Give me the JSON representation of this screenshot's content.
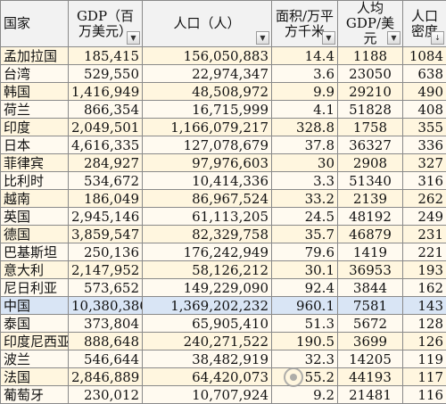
{
  "headers": {
    "country": "国家",
    "gdp": "GDP（百万美元）",
    "population": "人口（人）",
    "area": "面积/万平方千米",
    "gdp_per_capita": "人均GDP/美元",
    "density": "人口密度"
  },
  "filter_icons": {
    "gdp": "▼",
    "population": "▼",
    "area": "▼",
    "gdp_per_capita": "▼",
    "density": "↓"
  },
  "rows": [
    {
      "country": "孟加拉国",
      "gdp": "185,415",
      "population": "156,050,883",
      "area": "14.4",
      "gdp_per_capita": "1188",
      "density": "1084"
    },
    {
      "country": "台湾",
      "gdp": "529,550",
      "population": "22,974,347",
      "area": "3.6",
      "gdp_per_capita": "23050",
      "density": "638"
    },
    {
      "country": "韩国",
      "gdp": "1,416,949",
      "population": "48,508,972",
      "area": "9.9",
      "gdp_per_capita": "29210",
      "density": "490"
    },
    {
      "country": "荷兰",
      "gdp": "866,354",
      "population": "16,715,999",
      "area": "4.1",
      "gdp_per_capita": "51828",
      "density": "408"
    },
    {
      "country": "印度",
      "gdp": "2,049,501",
      "population": "1,166,079,217",
      "area": "328.8",
      "gdp_per_capita": "1758",
      "density": "355"
    },
    {
      "country": "日本",
      "gdp": "4,616,335",
      "population": "127,078,679",
      "area": "37.8",
      "gdp_per_capita": "36327",
      "density": "336"
    },
    {
      "country": "菲律宾",
      "gdp": "284,927",
      "population": "97,976,603",
      "area": "30",
      "gdp_per_capita": "2908",
      "density": "327"
    },
    {
      "country": "比利时",
      "gdp": "534,672",
      "population": "10,414,336",
      "area": "3.3",
      "gdp_per_capita": "51340",
      "density": "316"
    },
    {
      "country": "越南",
      "gdp": "186,049",
      "population": "86,967,524",
      "area": "33.2",
      "gdp_per_capita": "2139",
      "density": "262"
    },
    {
      "country": "英国",
      "gdp": "2,945,146",
      "population": "61,113,205",
      "area": "24.5",
      "gdp_per_capita": "48192",
      "density": "249"
    },
    {
      "country": "德国",
      "gdp": "3,859,547",
      "population": "82,329,758",
      "area": "35.7",
      "gdp_per_capita": "46879",
      "density": "231"
    },
    {
      "country": "巴基斯坦",
      "gdp": "250,136",
      "population": "176,242,949",
      "area": "79.6",
      "gdp_per_capita": "1419",
      "density": "221"
    },
    {
      "country": "意大利",
      "gdp": "2,147,952",
      "population": "58,126,212",
      "area": "30.1",
      "gdp_per_capita": "36953",
      "density": "193"
    },
    {
      "country": "尼日利亚",
      "gdp": "573,652",
      "population": "149,229,090",
      "area": "92.4",
      "gdp_per_capita": "3844",
      "density": "162"
    },
    {
      "country": "中国",
      "gdp": "10,380,380",
      "population": "1,369,202,232",
      "area": "960.1",
      "gdp_per_capita": "7581",
      "density": "143"
    },
    {
      "country": "泰国",
      "gdp": "373,804",
      "population": "65,905,410",
      "area": "51.3",
      "gdp_per_capita": "5672",
      "density": "128"
    },
    {
      "country": "印度尼西亚",
      "gdp": "888,648",
      "population": "240,271,522",
      "area": "190.5",
      "gdp_per_capita": "3699",
      "density": "126"
    },
    {
      "country": "波兰",
      "gdp": "546,644",
      "population": "38,482,919",
      "area": "32.3",
      "gdp_per_capita": "14205",
      "density": "119"
    },
    {
      "country": "法国",
      "gdp": "2,846,889",
      "population": "64,420,073",
      "area": "55.2",
      "gdp_per_capita": "44193",
      "density": "117"
    },
    {
      "country": "葡萄牙",
      "gdp": "230,012",
      "population": "10,707,924",
      "area": "9.2",
      "gdp_per_capita": "21481",
      "density": "116"
    }
  ],
  "highlight_country": "中国",
  "colors": {
    "row_odd": "#fff6df",
    "row_even": "#fffaf0",
    "highlight": "#d9e5f5",
    "header_bg": "#f2f2f2",
    "grid": "#8a8a8a"
  }
}
